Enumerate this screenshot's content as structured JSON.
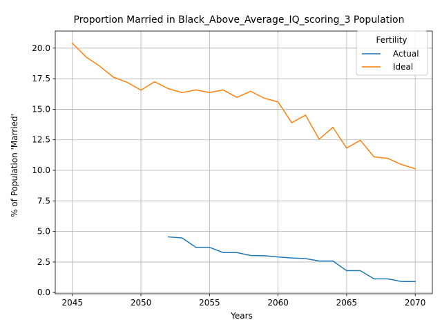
{
  "chart_data": {
    "type": "line",
    "title": "Proportion Married in Black_Above_Average_IQ_scoring_3 Population",
    "xlabel": "Years",
    "ylabel": "% of Population 'Married'",
    "xlim": [
      2043.75,
      2071.25
    ],
    "ylim": [
      -0.1,
      21.4
    ],
    "xticks": [
      2045,
      2050,
      2055,
      2060,
      2065,
      2070
    ],
    "yticks": [
      0.0,
      2.5,
      5.0,
      7.5,
      10.0,
      12.5,
      15.0,
      17.5,
      20.0
    ],
    "ytick_labels": [
      "0.0",
      "2.5",
      "5.0",
      "7.5",
      "10.0",
      "12.5",
      "15.0",
      "17.5",
      "20.0"
    ],
    "grid": true,
    "legend": {
      "title": "Fertility",
      "placement": "top-right"
    },
    "series": [
      {
        "name": "Actual",
        "color": "#1f77b4",
        "x": [
          2052,
          2053,
          2054,
          2055,
          2056,
          2057,
          2058,
          2059,
          2060,
          2061,
          2062,
          2063,
          2064,
          2065,
          2066,
          2067,
          2068,
          2069,
          2070
        ],
        "values": [
          4.55,
          4.47,
          3.7,
          3.7,
          3.27,
          3.27,
          3.03,
          3.01,
          2.91,
          2.83,
          2.78,
          2.58,
          2.58,
          1.79,
          1.79,
          1.12,
          1.12,
          0.9,
          0.9
        ]
      },
      {
        "name": "Ideal",
        "color": "#ff7f0e",
        "x": [
          2045,
          2046,
          2047,
          2048,
          2049,
          2050,
          2051,
          2052,
          2053,
          2054,
          2055,
          2056,
          2057,
          2058,
          2059,
          2060,
          2061,
          2062,
          2063,
          2064,
          2065,
          2066,
          2067,
          2068,
          2069,
          2070
        ],
        "values": [
          20.4,
          19.28,
          18.52,
          17.62,
          17.2,
          16.56,
          17.25,
          16.68,
          16.36,
          16.58,
          16.37,
          16.58,
          15.97,
          16.47,
          15.9,
          15.6,
          13.9,
          14.52,
          12.55,
          13.52,
          11.82,
          12.46,
          11.1,
          10.98,
          10.48,
          10.13
        ]
      }
    ]
  }
}
